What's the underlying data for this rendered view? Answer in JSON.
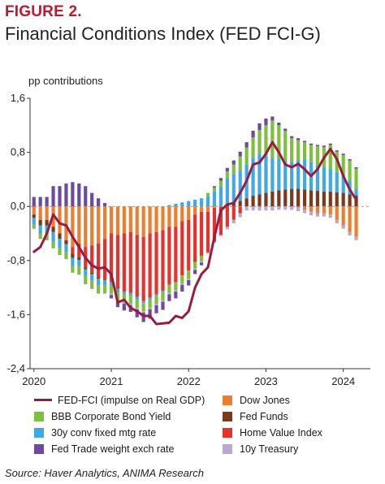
{
  "figure_label": "FIGURE 2.",
  "title": "Financial Conditions Index (FED FCI-G)",
  "unit_label": "pp contributions",
  "source": "Source: Haver Analytics, ANIMA Research",
  "chart_data": {
    "type": "bar",
    "stacked": true,
    "title": "Financial Conditions Index (FED FCI-G)",
    "ylabel": "pp contributions",
    "ylim": [
      -2.4,
      1.6
    ],
    "yticks": [
      "1,6",
      "0,8",
      "0,0",
      "-0,8",
      "-1,6",
      "-2,4"
    ],
    "ytick_values": [
      1.6,
      0.8,
      0.0,
      -0.8,
      -1.6,
      -2.4
    ],
    "xticks": [
      "2020",
      "2021",
      "2022",
      "2023",
      "2024"
    ],
    "xtick_values": [
      2020,
      2021,
      2022,
      2023,
      2024
    ],
    "x": [
      2020.0,
      2020.0833,
      2020.1667,
      2020.25,
      2020.3333,
      2020.4167,
      2020.5,
      2020.5833,
      2020.6667,
      2020.75,
      2020.8333,
      2020.9167,
      2021.0,
      2021.0833,
      2021.1667,
      2021.25,
      2021.3333,
      2021.4167,
      2021.5,
      2021.5833,
      2021.6667,
      2021.75,
      2021.8333,
      2021.9167,
      2022.0,
      2022.0833,
      2022.1667,
      2022.25,
      2022.3333,
      2022.4167,
      2022.5,
      2022.5833,
      2022.6667,
      2022.75,
      2022.8333,
      2022.9167,
      2023.0,
      2023.0833,
      2023.1667,
      2023.25,
      2023.3333,
      2023.4167,
      2023.5,
      2023.5833,
      2023.6667,
      2023.75,
      2023.8333,
      2023.9167,
      2024.0,
      2024.0833,
      2024.1667
    ],
    "series": [
      {
        "name": "Dow Jones",
        "color": "#ee7d31",
        "values": [
          -0.12,
          -0.2,
          -0.2,
          -0.3,
          -0.4,
          -0.5,
          -0.6,
          -0.55,
          -0.6,
          -0.58,
          -0.55,
          -0.48,
          -0.4,
          -0.42,
          -0.4,
          -0.38,
          -0.42,
          -0.45,
          -0.4,
          -0.38,
          -0.35,
          -0.3,
          -0.3,
          -0.22,
          -0.2,
          -0.12,
          -0.08,
          -0.08,
          -0.02,
          0.0,
          0.0,
          0.0,
          0.0,
          0.0,
          0.0,
          0.0,
          0.0,
          0.0,
          0.0,
          0.0,
          0.0,
          -0.02,
          -0.05,
          -0.08,
          -0.1,
          -0.1,
          -0.12,
          -0.2,
          -0.28,
          -0.38,
          -0.45
        ]
      },
      {
        "name": "Home Value Index",
        "color": "#e5322d",
        "values": [
          0.0,
          0.0,
          0.0,
          0.0,
          0.0,
          0.0,
          -0.1,
          -0.2,
          -0.3,
          -0.4,
          -0.5,
          -0.6,
          -0.72,
          -0.8,
          -0.86,
          -0.9,
          -0.92,
          -0.95,
          -0.95,
          -0.92,
          -0.9,
          -0.86,
          -0.82,
          -0.8,
          -0.75,
          -0.7,
          -0.65,
          -0.6,
          -0.5,
          -0.42,
          -0.3,
          -0.2,
          -0.1,
          0.0,
          0.0,
          0.0,
          0.0,
          0.0,
          0.0,
          0.0,
          0.0,
          0.0,
          0.0,
          0.0,
          0.0,
          0.0,
          0.0,
          0.0,
          0.0,
          0.0,
          0.0
        ]
      },
      {
        "name": "Fed Funds",
        "color": "#7b3a1b",
        "values": [
          -0.05,
          -0.08,
          -0.08,
          -0.08,
          -0.08,
          -0.06,
          -0.06,
          -0.04,
          -0.03,
          -0.02,
          -0.02,
          -0.01,
          0.0,
          0.0,
          0.0,
          0.0,
          0.0,
          0.0,
          0.0,
          0.0,
          0.0,
          0.0,
          0.0,
          0.0,
          0.0,
          0.0,
          0.0,
          0.0,
          0.0,
          0.0,
          0.04,
          0.06,
          0.08,
          0.12,
          0.16,
          0.18,
          0.2,
          0.22,
          0.24,
          0.25,
          0.26,
          0.26,
          0.25,
          0.24,
          0.23,
          0.22,
          0.22,
          0.21,
          0.2,
          0.18,
          0.16
        ]
      },
      {
        "name": "30y conv fixed mtg rate",
        "color": "#3fa9e4",
        "values": [
          -0.1,
          -0.12,
          -0.12,
          -0.14,
          -0.14,
          -0.12,
          -0.12,
          -0.1,
          -0.1,
          -0.1,
          -0.1,
          -0.08,
          -0.05,
          -0.05,
          -0.04,
          -0.04,
          -0.04,
          -0.03,
          -0.03,
          -0.02,
          -0.02,
          0.02,
          0.04,
          0.06,
          0.08,
          0.1,
          0.12,
          0.15,
          0.22,
          0.3,
          0.38,
          0.42,
          0.46,
          0.5,
          0.56,
          0.6,
          0.55,
          0.5,
          0.46,
          0.42,
          0.4,
          0.42,
          0.45,
          0.42,
          0.38,
          0.36,
          0.34,
          0.3,
          0.26,
          0.2,
          0.1
        ]
      },
      {
        "name": "BBB Corporate Bond Yield",
        "color": "#7fbf3e",
        "values": [
          -0.06,
          -0.08,
          -0.1,
          -0.1,
          -0.1,
          -0.1,
          -0.1,
          -0.12,
          -0.12,
          -0.12,
          -0.12,
          -0.12,
          -0.12,
          -0.12,
          -0.12,
          -0.12,
          -0.12,
          -0.12,
          -0.12,
          -0.12,
          -0.12,
          -0.12,
          -0.12,
          -0.12,
          -0.12,
          -0.1,
          -0.08,
          0.05,
          0.06,
          0.08,
          0.1,
          0.14,
          0.2,
          0.25,
          0.3,
          0.35,
          0.45,
          0.55,
          0.5,
          0.45,
          0.35,
          0.3,
          0.25,
          0.25,
          0.28,
          0.3,
          0.35,
          0.3,
          0.3,
          0.3,
          0.3
        ]
      },
      {
        "name": "10y Treasury",
        "color": "#b8a9d2",
        "values": [
          0.0,
          0.0,
          0.0,
          0.0,
          0.0,
          0.0,
          0.0,
          0.0,
          0.0,
          0.0,
          0.0,
          0.0,
          -0.02,
          -0.02,
          -0.02,
          -0.02,
          -0.02,
          -0.02,
          -0.02,
          -0.02,
          -0.02,
          -0.02,
          -0.02,
          -0.02,
          -0.02,
          -0.02,
          -0.02,
          -0.02,
          -0.02,
          -0.02,
          -0.04,
          -0.05,
          -0.06,
          -0.06,
          -0.06,
          -0.06,
          -0.06,
          -0.06,
          -0.05,
          -0.05,
          -0.05,
          -0.05,
          -0.05,
          -0.05,
          -0.05,
          -0.05,
          -0.05,
          -0.05,
          -0.05,
          -0.05,
          -0.05
        ]
      },
      {
        "name": "Fed Trade weight exch rate",
        "color": "#6b4aa1",
        "values": [
          0.14,
          0.14,
          0.14,
          0.3,
          0.3,
          0.34,
          0.36,
          0.34,
          0.3,
          0.2,
          0.12,
          0.05,
          -0.05,
          -0.08,
          -0.1,
          -0.1,
          -0.12,
          -0.14,
          -0.14,
          -0.12,
          -0.12,
          -0.1,
          -0.1,
          -0.1,
          -0.08,
          -0.06,
          -0.04,
          0.0,
          0.02,
          0.04,
          0.05,
          0.06,
          0.07,
          0.08,
          0.1,
          0.1,
          0.1,
          0.06,
          0.04,
          0.03,
          0.03,
          0.03,
          0.02,
          0.02,
          0.02,
          0.02,
          0.02,
          0.02,
          0.02,
          0.02,
          0.02
        ]
      }
    ],
    "line": {
      "name": "FED-FCI (impulse on Real GDP)",
      "color": "#9b1b3f",
      "values": [
        -0.67,
        -0.6,
        -0.4,
        -0.12,
        -0.25,
        -0.28,
        -0.45,
        -0.6,
        -0.76,
        -0.87,
        -0.92,
        -0.9,
        -1.0,
        -1.42,
        -1.38,
        -1.5,
        -1.55,
        -1.62,
        -1.62,
        -1.74,
        -1.73,
        -1.72,
        -1.62,
        -1.65,
        -1.55,
        -1.2,
        -1.0,
        -0.9,
        -0.45,
        -0.06,
        0.03,
        0.05,
        0.2,
        0.38,
        0.62,
        0.65,
        0.78,
        0.95,
        0.8,
        0.62,
        0.58,
        0.63,
        0.55,
        0.45,
        0.55,
        0.72,
        0.85,
        0.7,
        0.45,
        0.25,
        0.1
      ]
    },
    "legend": [
      {
        "label": "FED-FCI (impulse on Real GDP)",
        "color": "#9b1b3f",
        "kind": "line"
      },
      {
        "label": "Dow Jones",
        "color": "#ee7d31",
        "kind": "box"
      },
      {
        "label": "BBB Corporate Bond Yield",
        "color": "#7fbf3e",
        "kind": "box"
      },
      {
        "label": "Fed Funds",
        "color": "#7b3a1b",
        "kind": "box"
      },
      {
        "label": "30y conv fixed mtg rate",
        "color": "#3fa9e4",
        "kind": "box"
      },
      {
        "label": "Home Value Index",
        "color": "#e5322d",
        "kind": "box"
      },
      {
        "label": "Fed Trade weight exch rate",
        "color": "#6b4aa1",
        "kind": "box"
      },
      {
        "label": "10y Treasury",
        "color": "#b8a9d2",
        "kind": "box"
      }
    ],
    "grid": false,
    "legend_position": "bottom"
  }
}
